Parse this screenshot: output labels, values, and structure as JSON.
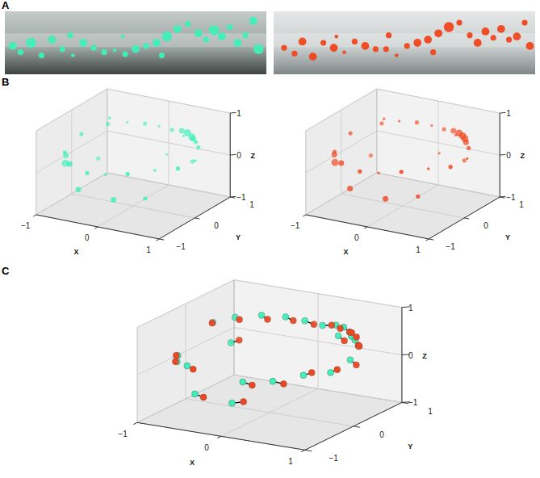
{
  "chart_data": [
    {
      "type": "scatter",
      "panel_label": "A",
      "tick_labels": false,
      "xlim": [
        0,
        1
      ],
      "ylim": [
        0,
        1
      ],
      "series": [
        {
          "color": "#3ef0b8",
          "x": [
            0.03,
            0.06,
            0.1,
            0.14,
            0.18,
            0.22,
            0.26,
            0.3,
            0.34,
            0.38,
            0.42,
            0.46,
            0.5,
            0.54,
            0.58,
            0.62,
            0.66,
            0.7,
            0.74,
            0.77,
            0.8,
            0.83,
            0.86,
            0.89,
            0.92,
            0.95,
            0.97,
            0.45,
            0.25,
            0.6
          ],
          "y": [
            0.45,
            0.35,
            0.5,
            0.3,
            0.55,
            0.4,
            0.3,
            0.5,
            0.42,
            0.35,
            0.38,
            0.32,
            0.4,
            0.45,
            0.5,
            0.6,
            0.72,
            0.8,
            0.65,
            0.55,
            0.7,
            0.6,
            0.75,
            0.5,
            0.62,
            0.85,
            0.4,
            0.6,
            0.62,
            0.3
          ],
          "sizes": [
            3,
            2,
            4,
            2,
            3,
            2,
            1,
            3,
            2,
            2,
            1,
            2,
            3,
            2,
            3,
            4,
            3,
            2,
            3,
            2,
            4,
            3,
            2,
            3,
            2,
            3,
            4,
            1,
            2,
            2
          ]
        }
      ]
    },
    {
      "type": "scatter",
      "tick_labels": false,
      "xlim": [
        0,
        1
      ],
      "ylim": [
        0,
        1
      ],
      "series": [
        {
          "color": "#f0461e",
          "x": [
            0.04,
            0.08,
            0.11,
            0.15,
            0.19,
            0.23,
            0.27,
            0.31,
            0.35,
            0.39,
            0.43,
            0.47,
            0.51,
            0.55,
            0.59,
            0.63,
            0.67,
            0.71,
            0.75,
            0.78,
            0.81,
            0.84,
            0.87,
            0.9,
            0.93,
            0.96,
            0.98,
            0.44,
            0.24,
            0.61
          ],
          "y": [
            0.42,
            0.33,
            0.52,
            0.28,
            0.5,
            0.42,
            0.35,
            0.52,
            0.45,
            0.4,
            0.4,
            0.3,
            0.45,
            0.5,
            0.55,
            0.65,
            0.75,
            0.82,
            0.62,
            0.5,
            0.68,
            0.58,
            0.72,
            0.55,
            0.6,
            0.82,
            0.45,
            0.62,
            0.6,
            0.35
          ],
          "sizes": [
            2,
            2,
            3,
            3,
            2,
            3,
            1,
            2,
            3,
            2,
            2,
            1,
            2,
            3,
            3,
            3,
            4,
            2,
            2,
            3,
            3,
            2,
            3,
            2,
            3,
            2,
            3,
            2,
            1,
            2
          ]
        }
      ]
    },
    {
      "type": "scatter3d",
      "panel_label": "B",
      "xlabel": "X",
      "ylabel": "Y",
      "zlabel": "Z",
      "grid": true,
      "xlim": [
        -1,
        1
      ],
      "ylim": [
        -1,
        1
      ],
      "zlim": [
        -1,
        1
      ],
      "xticks": [
        {
          "value": -1,
          "label": "−1"
        },
        0,
        1
      ],
      "yticks": [
        {
          "value": -1,
          "label": "−1"
        },
        0,
        1
      ],
      "zticks": [
        {
          "value": -1,
          "label": "−1"
        },
        0,
        1
      ],
      "series": [
        {
          "color": "#3ef0b8",
          "x": [
            -0.95,
            -0.93,
            -0.9,
            -0.85,
            -0.7,
            -0.6,
            -0.5,
            -0.3,
            -0.1,
            0.1,
            0.3,
            0.45,
            0.55,
            0.6,
            0.7,
            0.8,
            0.3,
            -0.2,
            0.1,
            0.4,
            0.7,
            0.9,
            0.95,
            -0.4,
            0.2,
            0.6,
            -0.8,
            0.5,
            0.0,
            -0.5
          ],
          "y": [
            -0.25,
            -0.3,
            0.1,
            -0.45,
            0.5,
            -0.75,
            0.7,
            0.85,
            0.9,
            0.92,
            0.85,
            0.75,
            0.7,
            0.65,
            0.55,
            0.45,
            0.9,
            -0.95,
            -0.95,
            -0.85,
            -0.6,
            -0.3,
            0.1,
            -0.85,
            -0.9,
            -0.7,
            0.4,
            0.8,
            0.95,
            0.2
          ],
          "z": [
            0.05,
            -0.1,
            0.4,
            0.25,
            0.5,
            0.2,
            0.5,
            0.45,
            0.42,
            0.38,
            0.45,
            0.5,
            0.45,
            0.45,
            0.45,
            0.4,
            0.3,
            0.2,
            0.25,
            0.3,
            0.35,
            0.3,
            0.3,
            -0.3,
            -0.35,
            -0.3,
            -0.3,
            -0.2,
            -0.25,
            0.85
          ],
          "sizes": [
            3,
            4,
            2,
            2,
            2,
            3,
            1,
            2,
            1,
            2,
            3,
            4,
            4,
            3,
            2,
            2,
            1,
            2,
            1,
            2,
            1,
            2,
            1,
            3,
            3,
            2,
            2,
            2,
            1,
            1
          ]
        }
      ]
    },
    {
      "type": "scatter3d",
      "xlabel": "X",
      "ylabel": "Y",
      "zlabel": "Z",
      "grid": true,
      "xlim": [
        -1,
        1
      ],
      "ylim": [
        -1,
        1
      ],
      "zlim": [
        -1,
        1
      ],
      "xticks": [
        {
          "value": -1,
          "label": "−1"
        },
        0,
        1
      ],
      "yticks": [
        {
          "value": -1,
          "label": "−1"
        },
        0,
        1
      ],
      "zticks": [
        {
          "value": -1,
          "label": "−1"
        },
        0,
        1
      ],
      "series": [
        {
          "color": "#f0461e",
          "x": [
            -0.94,
            -0.9,
            -0.88,
            -0.82,
            -0.66,
            -0.55,
            -0.45,
            -0.25,
            -0.05,
            0.15,
            0.35,
            0.5,
            0.58,
            0.65,
            0.74,
            0.84,
            0.35,
            -0.15,
            0.15,
            0.45,
            0.74,
            0.92,
            0.96,
            -0.35,
            0.25,
            0.64,
            -0.78,
            0.55,
            0.05,
            -0.45
          ],
          "y": [
            -0.3,
            -0.35,
            0.05,
            -0.5,
            0.55,
            -0.78,
            0.68,
            0.83,
            0.9,
            0.9,
            0.82,
            0.72,
            0.68,
            0.62,
            0.5,
            0.4,
            0.88,
            -0.95,
            -0.94,
            -0.82,
            -0.56,
            -0.25,
            0.15,
            -0.88,
            -0.92,
            -0.68,
            0.45,
            0.78,
            0.94,
            0.25
          ],
          "z": [
            0.1,
            -0.05,
            0.45,
            0.3,
            0.5,
            0.25,
            0.55,
            0.5,
            0.45,
            0.42,
            0.48,
            0.52,
            0.5,
            0.48,
            0.48,
            0.42,
            0.35,
            0.25,
            0.3,
            0.35,
            0.38,
            0.32,
            0.33,
            -0.25,
            -0.3,
            -0.25,
            -0.25,
            -0.15,
            -0.2,
            0.82
          ],
          "sizes": [
            3,
            4,
            2,
            2,
            2,
            3,
            1,
            2,
            1,
            2,
            3,
            4,
            4,
            4,
            3,
            2,
            1,
            2,
            1,
            2,
            1,
            2,
            1,
            3,
            3,
            2,
            2,
            2,
            1,
            1
          ]
        }
      ]
    },
    {
      "type": "scatter3d_pairs",
      "panel_label": "C",
      "xlabel": "X",
      "ylabel": "Y",
      "zlabel": "Z",
      "grid": true,
      "xlim": [
        -1,
        1
      ],
      "ylim": [
        -1,
        1
      ],
      "zlim": [
        -1,
        1
      ],
      "xticks": [
        {
          "value": -1,
          "label": "−1"
        },
        0,
        1
      ],
      "yticks": [
        {
          "value": -1,
          "label": "−1"
        },
        0,
        1
      ],
      "zticks": [
        {
          "value": -1,
          "label": "−1"
        },
        0,
        1
      ],
      "series": [
        {
          "color": "#3ef0b8",
          "x": [
            -0.95,
            -0.93,
            -0.85,
            -0.7,
            -0.5,
            -0.3,
            -0.1,
            0.1,
            0.3,
            0.45,
            0.55,
            0.6,
            0.7,
            0.8,
            0.2,
            0.5,
            0.75,
            0.9,
            -0.4,
            0.1,
            0.5,
            -0.75,
            -0.55,
            0.3
          ],
          "y": [
            -0.25,
            -0.3,
            0.3,
            0.5,
            0.7,
            0.85,
            0.9,
            0.92,
            0.85,
            0.75,
            0.7,
            0.65,
            0.55,
            0.45,
            -0.9,
            -0.8,
            -0.6,
            -0.3,
            -0.85,
            -0.95,
            0.8,
            0.5,
            -0.75,
            0.9
          ],
          "z": [
            0.05,
            -0.05,
            0.5,
            0.55,
            0.55,
            0.5,
            0.45,
            0.4,
            0.5,
            0.55,
            0.5,
            0.45,
            0.45,
            0.4,
            0.15,
            0.2,
            0.3,
            0.25,
            -0.3,
            -0.3,
            -0.15,
            0.0,
            0.2,
            0.25
          ]
        },
        {
          "color": "#f0461e",
          "x": [
            -0.94,
            -0.92,
            -0.8,
            -0.62,
            -0.4,
            -0.18,
            0.02,
            0.22,
            0.38,
            0.55,
            0.62,
            0.7,
            0.78,
            0.85,
            0.3,
            0.6,
            0.82,
            0.95,
            -0.28,
            0.22,
            0.6,
            -0.68,
            -0.45,
            0.4
          ],
          "y": [
            -0.3,
            -0.35,
            0.2,
            0.45,
            0.65,
            0.8,
            0.88,
            0.9,
            0.8,
            0.7,
            0.62,
            0.58,
            0.48,
            0.38,
            -0.88,
            -0.75,
            -0.55,
            -0.25,
            -0.88,
            -0.92,
            0.75,
            0.55,
            -0.8,
            0.85
          ],
          "z": [
            0.08,
            -0.02,
            0.55,
            0.55,
            0.52,
            0.48,
            0.42,
            0.45,
            0.48,
            0.5,
            0.55,
            0.5,
            0.4,
            0.45,
            0.1,
            0.15,
            0.35,
            0.3,
            -0.32,
            -0.25,
            -0.2,
            0.05,
            0.18,
            0.2
          ]
        }
      ]
    }
  ]
}
